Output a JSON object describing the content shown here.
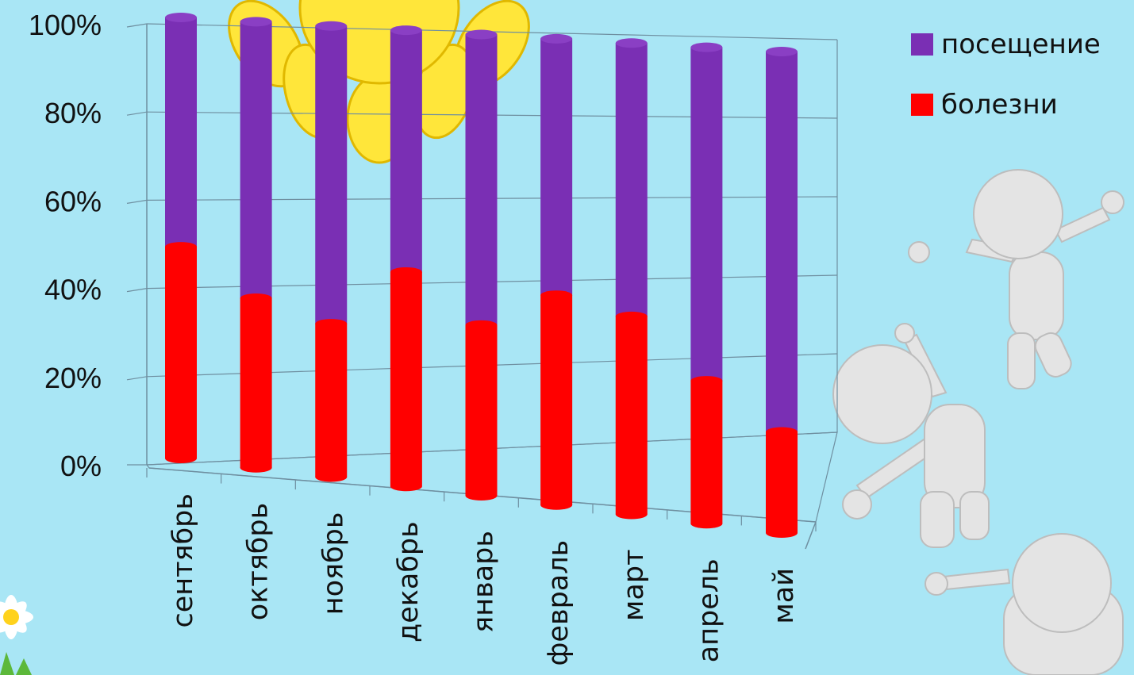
{
  "colors": {
    "background": "#a9e6f5",
    "visits": "#7a2fb4",
    "illness": "#ff0000",
    "grid": "#6f8fa0",
    "sun": "#ffe63a",
    "figure": "#e6e6e6"
  },
  "legend": [
    {
      "label": "посещение",
      "color": "#7a2fb4"
    },
    {
      "label": "болезни",
      "color": "#ff0000"
    }
  ],
  "chart_data": {
    "type": "bar",
    "stacked": true,
    "percent": true,
    "categories": [
      "сентябрь",
      "октябрь",
      "ноябрь",
      "декабрь",
      "январь",
      "февраль",
      "март",
      "апрель",
      "май"
    ],
    "series": [
      {
        "name": "болезни",
        "values": [
          48,
          38,
          34,
          47,
          37,
          45,
          42,
          30,
          21
        ]
      },
      {
        "name": "посещение",
        "values": [
          52,
          62,
          66,
          53,
          63,
          55,
          58,
          70,
          79
        ]
      }
    ],
    "y_ticks": [
      "0%",
      "20%",
      "40%",
      "60%",
      "80%",
      "100%"
    ],
    "ylim": [
      0,
      100
    ],
    "grid": true,
    "legend_position": "right",
    "decorations": [
      "sun-icon",
      "cheering-figure-icon",
      "daisy-flower-icon"
    ]
  }
}
